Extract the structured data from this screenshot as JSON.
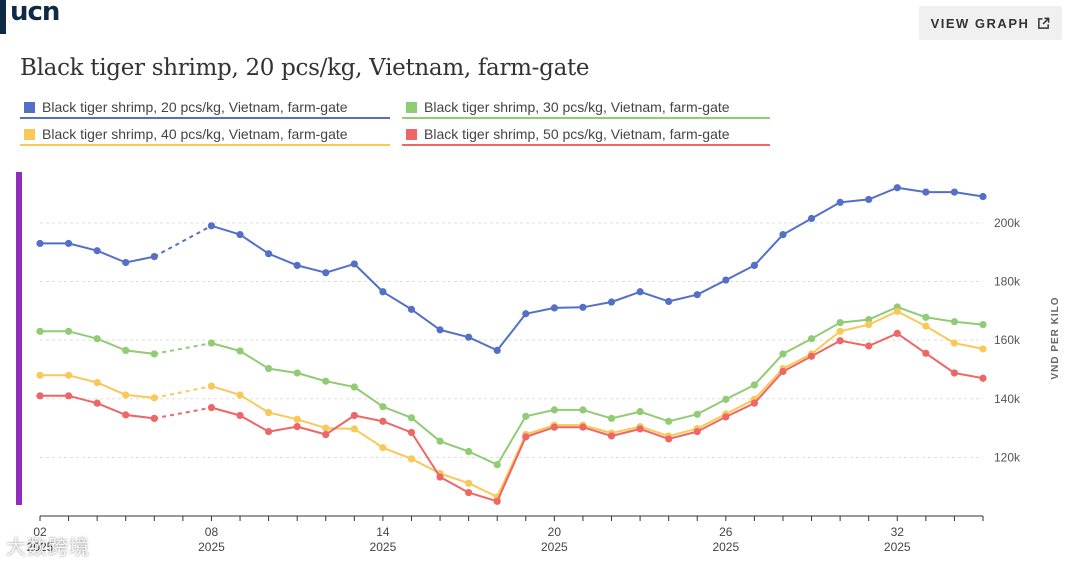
{
  "header": {
    "logo_text": "ucn",
    "view_button_label": "VIEW GRAPH"
  },
  "watermark": "大数跨境",
  "chart_data": {
    "type": "line",
    "title": "Black tiger shrimp, 20 pcs/kg, Vietnam, farm-gate",
    "ylabel": "VND PER KILO",
    "xlabel": "",
    "ylim": [
      100000,
      216000
    ],
    "yticks": [
      120000,
      140000,
      160000,
      180000,
      200000
    ],
    "ytick_labels": [
      "120k",
      "140k",
      "160k",
      "180k",
      "200k"
    ],
    "x": [
      2,
      3,
      4,
      5,
      6,
      8,
      9,
      10,
      11,
      12,
      13,
      14,
      15,
      16,
      17,
      18,
      19,
      20,
      21,
      22,
      23,
      24,
      25,
      26,
      27,
      28,
      29,
      30,
      31,
      32,
      33,
      34,
      35
    ],
    "xlim": [
      2,
      35
    ],
    "xticks": [
      2,
      8,
      14,
      20,
      26,
      32
    ],
    "xtick_labels": [
      [
        "02",
        "2025"
      ],
      [
        "08",
        "2025"
      ],
      [
        "14",
        "2025"
      ],
      [
        "20",
        "2025"
      ],
      [
        "26",
        "2025"
      ],
      [
        "32",
        "2025"
      ]
    ],
    "gap_after_x": 6,
    "grid": true,
    "legend_position": "top",
    "series": [
      {
        "name": "Black tiger shrimp, 20 pcs/kg, Vietnam, farm-gate",
        "color": "#5470c6",
        "values": [
          193000,
          193000,
          190500,
          186500,
          188500,
          199000,
          196000,
          189500,
          185500,
          183000,
          186000,
          176500,
          170500,
          163500,
          161000,
          156500,
          169000,
          171000,
          171200,
          173000,
          176500,
          173200,
          175500,
          180500,
          185500,
          196000,
          201500,
          207000,
          208000,
          212000,
          210500,
          210500,
          209000
        ]
      },
      {
        "name": "Black tiger shrimp, 30 pcs/kg, Vietnam, farm-gate",
        "color": "#91cc75",
        "values": [
          163000,
          163000,
          160500,
          156500,
          155300,
          159000,
          156300,
          150300,
          148800,
          146000,
          144000,
          137300,
          133500,
          125500,
          122000,
          117500,
          134000,
          136200,
          136200,
          133300,
          135600,
          132300,
          134700,
          139800,
          144700,
          155300,
          160500,
          166000,
          167000,
          171300,
          167800,
          166300,
          165300
        ]
      },
      {
        "name": "Black tiger shrimp, 40 pcs/kg, Vietnam, farm-gate",
        "color": "#fac858",
        "values": [
          148000,
          148000,
          145500,
          141300,
          140300,
          144300,
          141300,
          135300,
          133000,
          130000,
          129700,
          123300,
          119500,
          114500,
          111200,
          106500,
          127800,
          131000,
          131000,
          128300,
          130500,
          127300,
          129800,
          134800,
          139800,
          150300,
          155300,
          163000,
          165300,
          169800,
          164800,
          159000,
          157000
        ]
      },
      {
        "name": "Black tiger shrimp, 50 pcs/kg, Vietnam, farm-gate",
        "color": "#ee6666",
        "values": [
          141000,
          141000,
          138500,
          134500,
          133300,
          137000,
          134300,
          128800,
          130500,
          127800,
          134300,
          132300,
          128500,
          113300,
          108000,
          105000,
          127000,
          130300,
          130300,
          127300,
          129700,
          126300,
          128800,
          133800,
          138500,
          149300,
          154500,
          159800,
          158000,
          162300,
          155500,
          148800,
          147000
        ]
      }
    ]
  }
}
